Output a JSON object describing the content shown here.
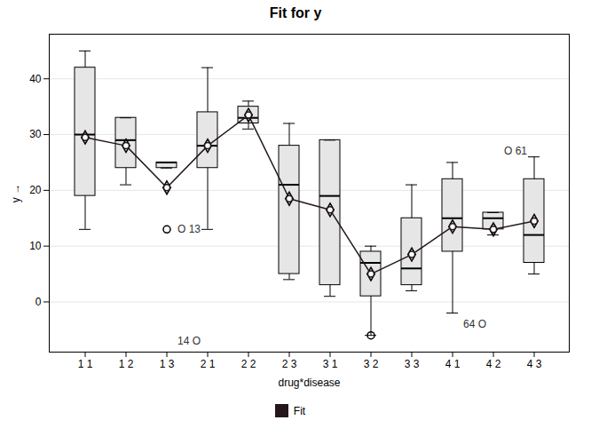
{
  "chart_data": {
    "type": "box",
    "title": "Fit for y",
    "xlabel": "drug*disease",
    "ylabel": "y",
    "categories": [
      "1 1",
      "1 2",
      "1 3",
      "2 1",
      "2 2",
      "2 3",
      "3 1",
      "3 2",
      "3 3",
      "4 1",
      "4 2",
      "4 3"
    ],
    "boxes": [
      {
        "whislo": 13,
        "q1": 19,
        "med": 30,
        "q3": 42,
        "whishi": 45
      },
      {
        "whislo": 21,
        "q1": 24,
        "med": 29,
        "q3": 33,
        "whishi": 33
      },
      {
        "whislo": 24,
        "q1": 24,
        "med": 25,
        "q3": 25,
        "whishi": 25
      },
      {
        "whislo": 13,
        "q1": 24,
        "med": 28,
        "q3": 34,
        "whishi": 42
      },
      {
        "whislo": 31,
        "q1": 32,
        "med": 33,
        "q3": 35,
        "whishi": 36
      },
      {
        "whislo": 4,
        "q1": 5,
        "med": 21,
        "q3": 28,
        "whishi": 32
      },
      {
        "whislo": 1,
        "q1": 3,
        "med": 19,
        "q3": 29,
        "whishi": 29
      },
      {
        "whislo": -6,
        "q1": 1,
        "med": 7,
        "q3": 9,
        "whishi": 10
      },
      {
        "whislo": 2,
        "q1": 3,
        "med": 6,
        "q3": 15,
        "whishi": 21
      },
      {
        "whislo": -2,
        "q1": 9,
        "med": 15,
        "q3": 22,
        "whishi": 25
      },
      {
        "whislo": 12,
        "q1": 13,
        "med": 15,
        "q3": 16,
        "whishi": 16
      },
      {
        "whislo": 5,
        "q1": 7,
        "med": 12,
        "q3": 22,
        "whishi": 26
      }
    ],
    "series": [
      {
        "name": "Fit",
        "type": "line",
        "marker": "o",
        "line_style": "solid",
        "values": [
          29.5,
          28,
          20.5,
          28,
          33.5,
          18.5,
          16.5,
          5,
          8.5,
          13.5,
          13,
          14.5
        ]
      }
    ],
    "outliers": [
      {
        "category": "1 3",
        "y": 13,
        "label": "O 13"
      },
      {
        "category": "3 2",
        "y": -6
      }
    ],
    "annotations": [
      {
        "category": "1 3",
        "y": -7,
        "text": "14 O"
      },
      {
        "category": "4 1",
        "y": -4,
        "text": "64 O"
      },
      {
        "category": "4 2",
        "y": 27,
        "text": "O 61"
      }
    ],
    "ylim": [
      -9,
      48
    ],
    "yticks": [
      0,
      10,
      20,
      30,
      40
    ],
    "grid": true,
    "legend": "bottom"
  }
}
